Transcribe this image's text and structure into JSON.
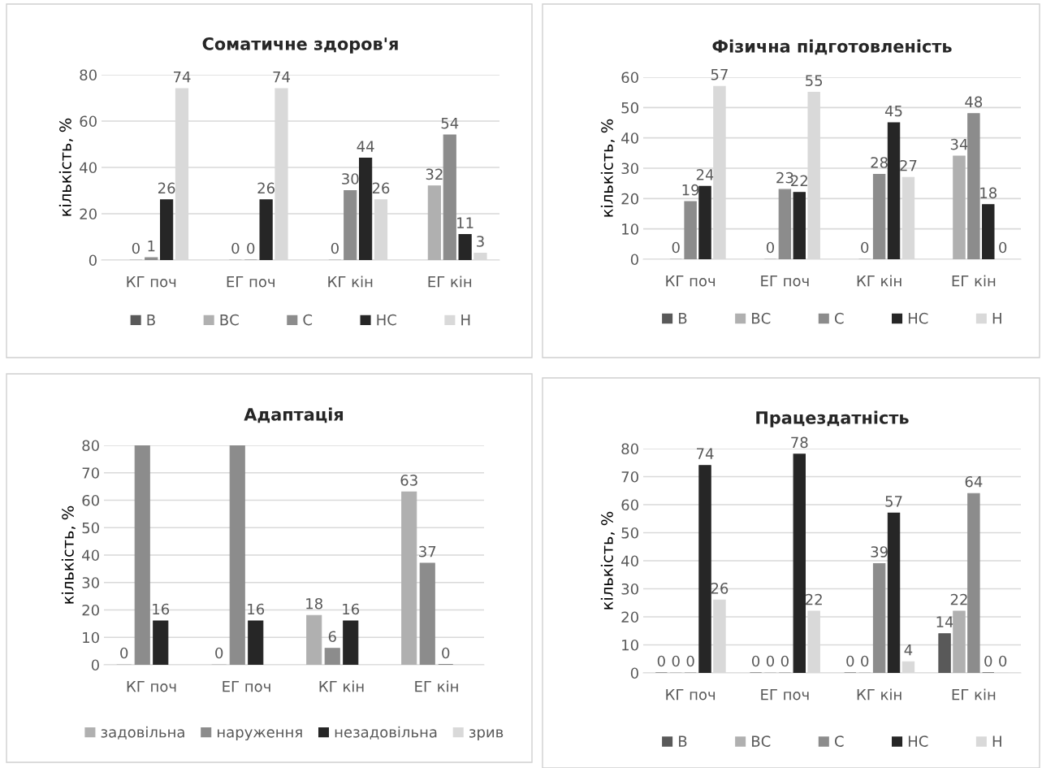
{
  "chart_data": [
    {
      "type": "bar",
      "title": "Соматичне здоров'я",
      "ylabel": "кількість, %",
      "categories": [
        "КГ поч",
        "ЕГ поч",
        "КГ кін",
        "ЕГ кін"
      ],
      "ylim": [
        0,
        80
      ],
      "yticks": [
        0,
        20,
        40,
        60,
        80
      ],
      "grid": "y",
      "legend": "bottom",
      "series": [
        {
          "name": "В",
          "color": "#595959",
          "values": [
            null,
            null,
            null,
            null
          ],
          "value_labels": [
            null,
            null,
            null,
            null
          ]
        },
        {
          "name": "ВС",
          "color": "#b0b0b0",
          "values": [
            0,
            0,
            0,
            32
          ],
          "value_labels": [
            "0",
            "0",
            "0",
            "32"
          ]
        },
        {
          "name": "С",
          "color": "#8c8c8c",
          "values": [
            1,
            0,
            30,
            54
          ],
          "value_labels": [
            "1",
            "0",
            "30",
            "54"
          ]
        },
        {
          "name": "НС",
          "color": "#262626",
          "values": [
            26,
            26,
            44,
            11
          ],
          "value_labels": [
            "26",
            "26",
            "44",
            "11"
          ]
        },
        {
          "name": "Н",
          "color": "#d9d9d9",
          "values": [
            74,
            74,
            26,
            3
          ],
          "value_labels": [
            "74",
            "74",
            "26",
            "3"
          ]
        }
      ]
    },
    {
      "type": "bar",
      "title": "Фізична підготовленість",
      "ylabel": "кількість, %",
      "categories": [
        "КГ поч",
        "ЕГ поч",
        "КГ кін",
        "ЕГ кін"
      ],
      "ylim": [
        0,
        60
      ],
      "yticks": [
        0,
        10,
        20,
        30,
        40,
        50,
        60
      ],
      "grid": "y",
      "legend": "bottom",
      "series": [
        {
          "name": "В",
          "color": "#595959",
          "values": [
            null,
            null,
            null,
            null
          ],
          "value_labels": [
            null,
            null,
            null,
            null
          ]
        },
        {
          "name": "ВС",
          "color": "#b0b0b0",
          "values": [
            0,
            0,
            0,
            34
          ],
          "value_labels": [
            "0",
            "0",
            "0",
            "34"
          ]
        },
        {
          "name": "С",
          "color": "#8c8c8c",
          "values": [
            19,
            23,
            28,
            48
          ],
          "value_labels": [
            "19",
            "23",
            "28",
            "48"
          ]
        },
        {
          "name": "НС",
          "color": "#262626",
          "values": [
            24,
            22,
            45,
            18
          ],
          "value_labels": [
            "24",
            "22",
            "45",
            "18"
          ]
        },
        {
          "name": "Н",
          "color": "#d9d9d9",
          "values": [
            57,
            55,
            27,
            0
          ],
          "value_labels": [
            "57",
            "55",
            "27",
            "0"
          ]
        }
      ]
    },
    {
      "type": "bar",
      "title": "Адаптація",
      "ylabel": "кількість, %",
      "categories": [
        "КГ поч",
        "ЕГ поч",
        "КГ кін",
        "ЕГ кін"
      ],
      "ylim": [
        0,
        80
      ],
      "yticks": [
        0,
        10,
        20,
        30,
        40,
        50,
        60,
        70,
        80
      ],
      "grid": "y",
      "legend": "bottom",
      "series": [
        {
          "name": "задовільна",
          "color": "#b0b0b0",
          "values": [
            0,
            0,
            18,
            63
          ],
          "value_labels": [
            "0",
            "0",
            "18",
            "63"
          ]
        },
        {
          "name": "наруження",
          "color": "#8c8c8c",
          "values": [
            80,
            80,
            6,
            37
          ],
          "value_labels": [
            null,
            null,
            "6",
            "37"
          ]
        },
        {
          "name": "незадовільна",
          "color": "#262626",
          "values": [
            16,
            16,
            16,
            0
          ],
          "value_labels": [
            "16",
            "16",
            "16",
            "0"
          ]
        },
        {
          "name": "зрив",
          "color": "#d9d9d9",
          "values": [
            null,
            null,
            null,
            null
          ],
          "value_labels": [
            null,
            null,
            null,
            null
          ]
        }
      ]
    },
    {
      "type": "bar",
      "title": "Працездатність",
      "ylabel": "кількість, %",
      "categories": [
        "КГ поч",
        "ЕГ поч",
        "КГ кін",
        "ЕГ кін"
      ],
      "ylim": [
        0,
        80
      ],
      "yticks": [
        0,
        10,
        20,
        30,
        40,
        50,
        60,
        70,
        80
      ],
      "grid": "y",
      "legend": "bottom",
      "series": [
        {
          "name": "В",
          "color": "#595959",
          "values": [
            0,
            0,
            0,
            14
          ],
          "value_labels": [
            "0",
            "0",
            "0",
            "14"
          ]
        },
        {
          "name": "ВС",
          "color": "#b0b0b0",
          "values": [
            0,
            0,
            0,
            22
          ],
          "value_labels": [
            "0",
            "0",
            "0",
            "22"
          ]
        },
        {
          "name": "С",
          "color": "#8c8c8c",
          "values": [
            0,
            0,
            39,
            64
          ],
          "value_labels": [
            "0",
            "0",
            "39",
            "64"
          ]
        },
        {
          "name": "НС",
          "color": "#262626",
          "values": [
            74,
            78,
            57,
            0
          ],
          "value_labels": [
            "74",
            "78",
            "57",
            "0"
          ]
        },
        {
          "name": "Н",
          "color": "#d9d9d9",
          "values": [
            26,
            22,
            4,
            0
          ],
          "value_labels": [
            "26",
            "22",
            "4",
            "0"
          ]
        }
      ]
    }
  ]
}
